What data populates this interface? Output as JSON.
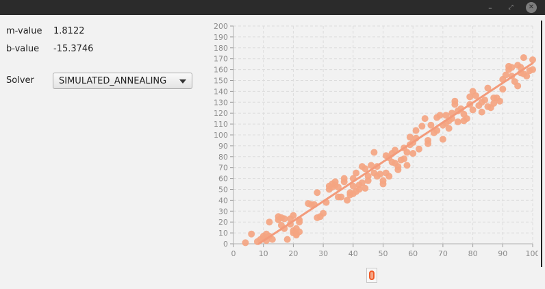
{
  "window": {
    "minimize_glyph": "–",
    "maximize_glyph": "⤢",
    "close_glyph": "✕"
  },
  "params": {
    "m_label": "m-value",
    "m_value": "1.8122",
    "b_label": "b-value",
    "b_value": "-15.3746"
  },
  "solver": {
    "label": "Solver",
    "selected": "SIMULATED_ANNEALING"
  },
  "colors": {
    "points": "#f4a582",
    "line": "#f39b7b",
    "grid": "#dcdcdc"
  },
  "chart_data": {
    "type": "scatter",
    "title": "",
    "xlabel": "",
    "ylabel": "",
    "xlim": [
      0,
      100
    ],
    "ylim": [
      0,
      200
    ],
    "grid": true,
    "x_ticks": [
      0,
      10,
      20,
      30,
      40,
      50,
      60,
      70,
      80,
      90,
      100
    ],
    "y_ticks": [
      0,
      10,
      20,
      30,
      40,
      50,
      60,
      70,
      80,
      90,
      100,
      110,
      120,
      130,
      140,
      150,
      160,
      170,
      180,
      190,
      200
    ],
    "line": {
      "slope": 1.8122,
      "intercept": -15.3746
    },
    "points": [
      [
        4,
        1
      ],
      [
        6,
        9
      ],
      [
        8,
        2
      ],
      [
        9,
        4
      ],
      [
        10,
        5
      ],
      [
        10,
        7
      ],
      [
        11,
        9
      ],
      [
        11,
        3
      ],
      [
        12,
        20
      ],
      [
        12,
        7
      ],
      [
        13,
        4
      ],
      [
        15,
        22
      ],
      [
        15,
        25
      ],
      [
        16,
        17
      ],
      [
        16,
        24
      ],
      [
        17,
        23
      ],
      [
        17,
        14
      ],
      [
        18,
        4
      ],
      [
        19,
        23
      ],
      [
        19,
        18
      ],
      [
        20,
        10
      ],
      [
        20,
        12
      ],
      [
        20,
        26
      ],
      [
        21,
        9
      ],
      [
        21,
        14
      ],
      [
        21,
        8
      ],
      [
        22,
        11
      ],
      [
        22,
        20
      ],
      [
        22,
        22
      ],
      [
        25,
        37
      ],
      [
        26,
        36
      ],
      [
        27,
        36
      ],
      [
        28,
        24
      ],
      [
        28,
        47
      ],
      [
        29,
        25
      ],
      [
        30,
        28
      ],
      [
        31,
        38
      ],
      [
        32,
        50
      ],
      [
        32,
        53
      ],
      [
        33,
        52
      ],
      [
        33,
        55
      ],
      [
        34,
        54
      ],
      [
        34,
        57
      ],
      [
        35,
        52
      ],
      [
        35,
        43
      ],
      [
        36,
        43
      ],
      [
        37,
        57
      ],
      [
        37,
        60
      ],
      [
        38,
        40
      ],
      [
        39,
        45
      ],
      [
        39,
        47
      ],
      [
        40,
        46
      ],
      [
        40,
        53
      ],
      [
        40,
        60
      ],
      [
        41,
        65
      ],
      [
        41,
        48
      ],
      [
        42,
        50
      ],
      [
        42,
        54
      ],
      [
        43,
        56
      ],
      [
        43,
        71
      ],
      [
        44,
        69
      ],
      [
        44,
        51
      ],
      [
        45,
        58
      ],
      [
        45,
        62
      ],
      [
        46,
        72
      ],
      [
        47,
        84
      ],
      [
        47,
        65
      ],
      [
        48,
        71
      ],
      [
        48,
        62
      ],
      [
        49,
        64
      ],
      [
        50,
        55
      ],
      [
        50,
        58
      ],
      [
        51,
        65
      ],
      [
        51,
        81
      ],
      [
        52,
        62
      ],
      [
        52,
        79
      ],
      [
        53,
        75
      ],
      [
        53,
        83
      ],
      [
        54,
        74
      ],
      [
        54,
        86
      ],
      [
        55,
        71
      ],
      [
        55,
        68
      ],
      [
        56,
        77
      ],
      [
        57,
        88
      ],
      [
        57,
        78
      ],
      [
        58,
        84
      ],
      [
        58,
        72
      ],
      [
        59,
        98
      ],
      [
        59,
        91
      ],
      [
        60,
        83
      ],
      [
        60,
        93
      ],
      [
        61,
        97
      ],
      [
        61,
        104
      ],
      [
        62,
        87
      ],
      [
        63,
        108
      ],
      [
        64,
        115
      ],
      [
        65,
        95
      ],
      [
        65,
        92
      ],
      [
        66,
        109
      ],
      [
        67,
        102
      ],
      [
        68,
        116
      ],
      [
        68,
        104
      ],
      [
        69,
        118
      ],
      [
        70,
        96
      ],
      [
        70,
        109
      ],
      [
        71,
        111
      ],
      [
        71,
        118
      ],
      [
        72,
        113
      ],
      [
        72,
        106
      ],
      [
        73,
        115
      ],
      [
        73,
        120
      ],
      [
        74,
        128
      ],
      [
        74,
        131
      ],
      [
        75,
        112
      ],
      [
        75,
        122
      ],
      [
        76,
        124
      ],
      [
        77,
        119
      ],
      [
        77,
        113
      ],
      [
        78,
        115
      ],
      [
        79,
        135
      ],
      [
        79,
        128
      ],
      [
        80,
        123
      ],
      [
        80,
        140
      ],
      [
        81,
        136
      ],
      [
        82,
        127
      ],
      [
        83,
        130
      ],
      [
        83,
        121
      ],
      [
        84,
        132
      ],
      [
        85,
        126
      ],
      [
        85,
        143
      ],
      [
        86,
        125
      ],
      [
        87,
        134
      ],
      [
        87,
        129
      ],
      [
        88,
        134
      ],
      [
        89,
        131
      ],
      [
        90,
        142
      ],
      [
        90,
        151
      ],
      [
        91,
        155
      ],
      [
        92,
        160
      ],
      [
        92,
        163
      ],
      [
        93,
        162
      ],
      [
        93,
        154
      ],
      [
        94,
        149
      ],
      [
        95,
        145
      ],
      [
        95,
        164
      ],
      [
        96,
        162
      ],
      [
        96,
        157
      ],
      [
        97,
        156
      ],
      [
        97,
        171
      ],
      [
        98,
        154
      ],
      [
        99,
        159
      ],
      [
        100,
        160
      ],
      [
        100,
        169
      ]
    ]
  }
}
